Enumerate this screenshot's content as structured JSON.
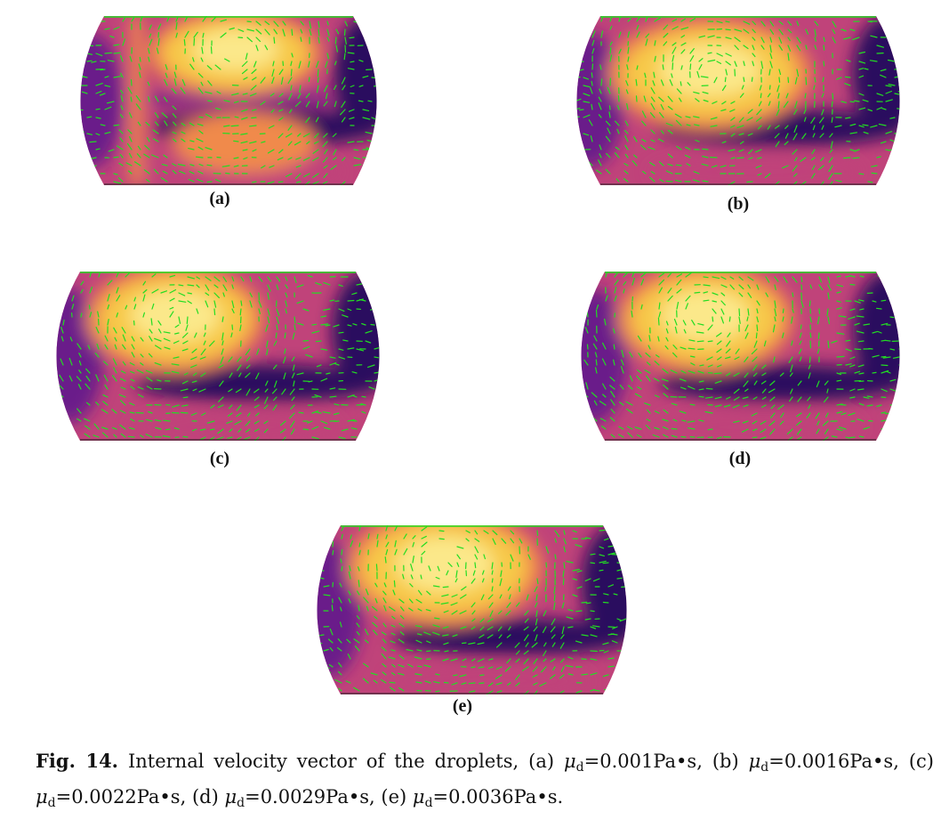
{
  "figure": {
    "panels": [
      {
        "id": "a",
        "label": "(a)",
        "viscosity": "0.001Pa•s"
      },
      {
        "id": "b",
        "label": "(b)",
        "viscosity": "0.0016Pa•s"
      },
      {
        "id": "c",
        "label": "(c)",
        "viscosity": "0.0022Pa•s"
      },
      {
        "id": "d",
        "label": "(d)",
        "viscosity": "0.0029Pa•s"
      },
      {
        "id": "e",
        "label": "(e)",
        "viscosity": "0.0036Pa•s"
      }
    ],
    "colormap": [
      "#2a0d5e",
      "#6b1f8a",
      "#c0437a",
      "#f08a4b",
      "#f7c94a",
      "#fbe88a"
    ],
    "vector_color": "#22dd22",
    "caption": {
      "fig_label": "Fig. 14.",
      "text": "Internal velocity vector of the droplets,",
      "symbol": "μ",
      "subscript": "d",
      "items": [
        {
          "tag": "(a)",
          "value": "=0.001Pa•s,"
        },
        {
          "tag": "(b)",
          "value": "=0.0016Pa•s,"
        },
        {
          "tag": "(c)",
          "value": "=0.0022Pa•s,"
        },
        {
          "tag": "(d)",
          "value": "=0.0029Pa•s,"
        },
        {
          "tag": "(e)",
          "value": "=0.0036Pa•s."
        }
      ]
    }
  }
}
